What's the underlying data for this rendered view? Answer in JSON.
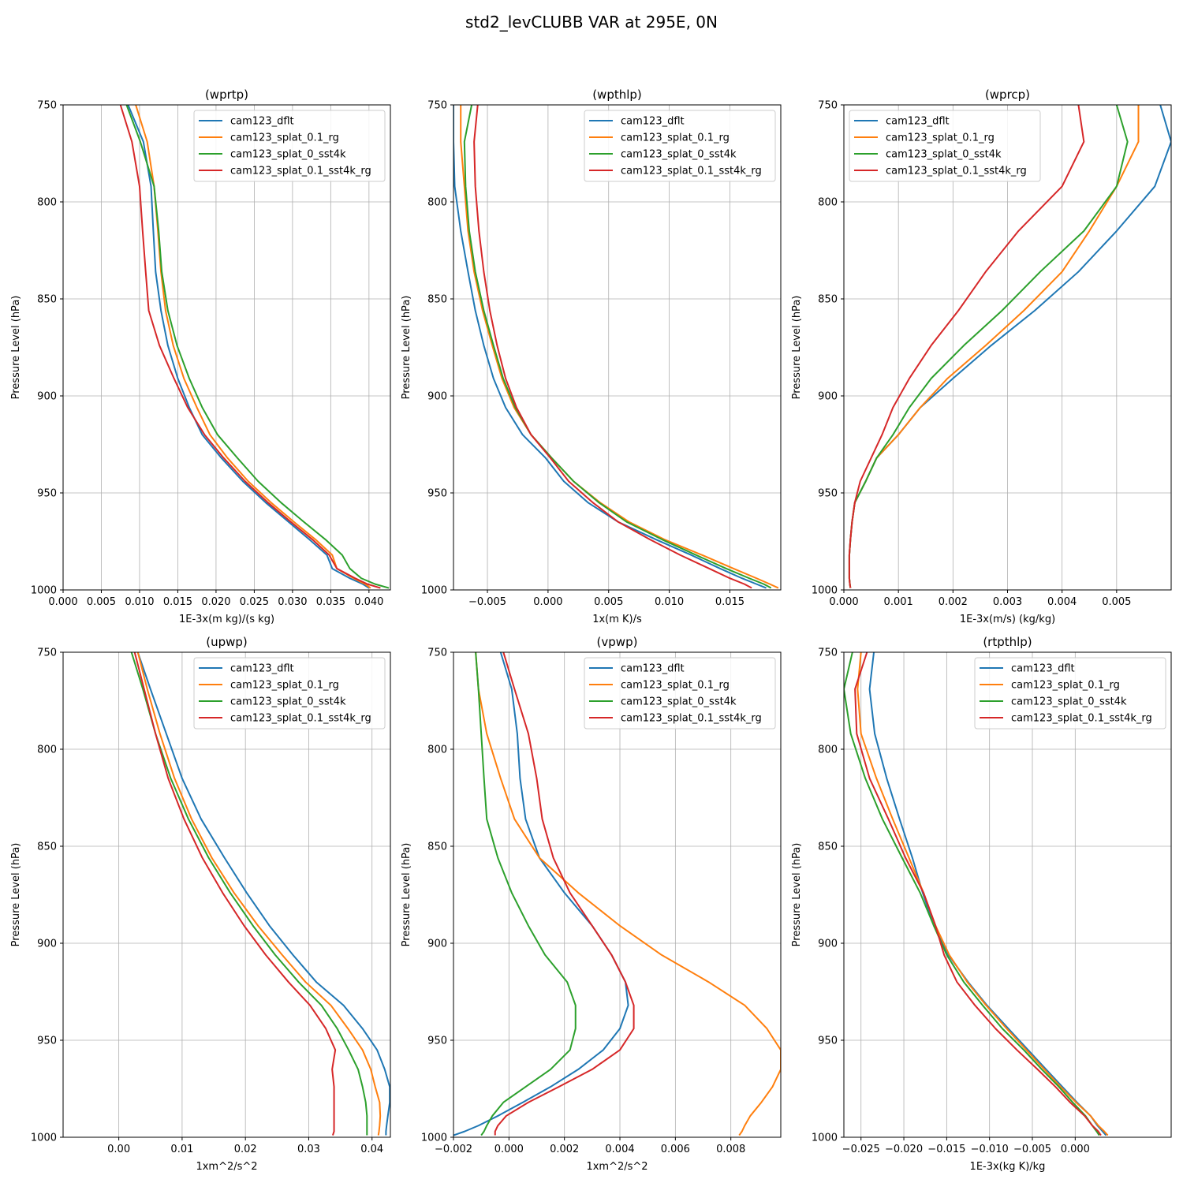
{
  "figure": {
    "title": "std2_levCLUBB VAR at 295E, 0N"
  },
  "legend_labels": [
    "cam123_dflt",
    "cam123_splat_0.1_rg",
    "cam123_splat_0_sst4k",
    "cam123_splat_0.1_sst4k_rg"
  ],
  "series_colors": [
    "#1f77b4",
    "#ff7f0e",
    "#2ca02c",
    "#d62728"
  ],
  "chart_data": [
    {
      "type": "line",
      "title": "(wprtp)",
      "xlabel": "1E-3x(m kg)/(s kg)",
      "ylabel": "Pressure Level (hPa)",
      "xlim": [
        0.0,
        0.0428
      ],
      "ylim": [
        1000,
        750
      ],
      "xticks": [
        0.0,
        0.005,
        0.01,
        0.015,
        0.02,
        0.025,
        0.03,
        0.035,
        0.04
      ],
      "xtick_labels": [
        "0.000",
        "0.005",
        "0.010",
        "0.015",
        "0.020",
        "0.025",
        "0.030",
        "0.035",
        "0.040"
      ],
      "yticks": [
        750,
        800,
        850,
        900,
        950,
        1000
      ],
      "ytick_labels": [
        "750",
        "800",
        "850",
        "900",
        "950",
        "1000"
      ],
      "legend_position": "upper right",
      "grid": true,
      "y": [
        750,
        769,
        792,
        815,
        836,
        856,
        874,
        891,
        906,
        920,
        932,
        944,
        955,
        965,
        974,
        982,
        989,
        994,
        997,
        999
      ],
      "series": [
        {
          "name": "cam123_dflt",
          "values": [
            0.0085,
            0.0105,
            0.0115,
            0.0118,
            0.0121,
            0.0128,
            0.0137,
            0.015,
            0.0165,
            0.0182,
            0.0207,
            0.0235,
            0.0265,
            0.0295,
            0.0322,
            0.0345,
            0.0352,
            0.0375,
            0.0392,
            0.04
          ]
        },
        {
          "name": "cam123_splat_0.1_rg",
          "values": [
            0.0095,
            0.011,
            0.0119,
            0.0124,
            0.0128,
            0.0134,
            0.0144,
            0.0158,
            0.0175,
            0.0192,
            0.0215,
            0.0242,
            0.0272,
            0.0302,
            0.033,
            0.0352,
            0.0358,
            0.038,
            0.0395,
            0.0402
          ]
        },
        {
          "name": "cam123_splat_0_sst4k",
          "values": [
            0.0083,
            0.0101,
            0.0119,
            0.0125,
            0.0129,
            0.0137,
            0.0149,
            0.0165,
            0.0182,
            0.0202,
            0.0228,
            0.0255,
            0.0285,
            0.0315,
            0.0343,
            0.0365,
            0.0375,
            0.039,
            0.0408,
            0.0426
          ]
        },
        {
          "name": "cam123_splat_0.1_sst4k_rg",
          "values": [
            0.0075,
            0.009,
            0.01,
            0.0104,
            0.0108,
            0.0112,
            0.0126,
            0.0145,
            0.0163,
            0.0185,
            0.021,
            0.0238,
            0.0268,
            0.0298,
            0.0326,
            0.0348,
            0.0358,
            0.0382,
            0.0398,
            0.0415
          ]
        }
      ]
    },
    {
      "type": "line",
      "title": "(wpthlp)",
      "xlabel": "1x(m K)/s",
      "ylabel": "Pressure Level (hPa)",
      "xlim": [
        -0.0078,
        0.0192
      ],
      "ylim": [
        1000,
        750
      ],
      "xticks": [
        -0.005,
        0.0,
        0.005,
        0.01,
        0.015
      ],
      "xtick_labels": [
        "−0.005",
        "0.000",
        "0.005",
        "0.010",
        "0.015"
      ],
      "yticks": [
        750,
        800,
        850,
        900,
        950,
        1000
      ],
      "ytick_labels": [
        "750",
        "800",
        "850",
        "900",
        "950",
        "1000"
      ],
      "legend_position": "upper right",
      "grid": true,
      "y": [
        750,
        769,
        792,
        815,
        836,
        856,
        874,
        891,
        906,
        920,
        932,
        944,
        955,
        965,
        974,
        982,
        989,
        994,
        997,
        999
      ],
      "series": [
        {
          "name": "cam123_dflt",
          "values": [
            -0.0078,
            -0.0078,
            -0.0077,
            -0.0072,
            -0.0066,
            -0.006,
            -0.0053,
            -0.0045,
            -0.0035,
            -0.0021,
            -0.0002,
            0.0013,
            0.0033,
            0.0058,
            0.0089,
            0.0118,
            0.0142,
            0.016,
            0.0172,
            0.018
          ]
        },
        {
          "name": "cam123_splat_0.1_rg",
          "values": [
            -0.0072,
            -0.0072,
            -0.0069,
            -0.0066,
            -0.0061,
            -0.0054,
            -0.0046,
            -0.0038,
            -0.0028,
            -0.0014,
            0.0003,
            0.0021,
            0.0043,
            0.0067,
            0.0096,
            0.0127,
            0.0153,
            0.0172,
            0.0183,
            0.019
          ]
        },
        {
          "name": "cam123_splat_0_sst4k",
          "values": [
            -0.0063,
            -0.0069,
            -0.0068,
            -0.0065,
            -0.006,
            -0.0053,
            -0.0045,
            -0.0037,
            -0.0027,
            -0.0014,
            0.0003,
            0.0021,
            0.0042,
            0.0065,
            0.0094,
            0.0122,
            0.0147,
            0.0166,
            0.0178,
            0.0184
          ]
        },
        {
          "name": "cam123_splat_0.1_sst4k_rg",
          "values": [
            -0.0058,
            -0.0061,
            -0.006,
            -0.0057,
            -0.0053,
            -0.0048,
            -0.0042,
            -0.0035,
            -0.0026,
            -0.0014,
            0.0002,
            0.0017,
            0.0037,
            0.0058,
            0.0084,
            0.0109,
            0.0133,
            0.015,
            0.0162,
            0.0168
          ]
        }
      ]
    },
    {
      "type": "line",
      "title": "(wprcp)",
      "xlabel": "1E-3x(m/s) (kg/kg)",
      "ylabel": "Pressure Level (hPa)",
      "xlim": [
        0.0,
        0.006
      ],
      "ylim": [
        1000,
        750
      ],
      "xticks": [
        0.0,
        0.001,
        0.002,
        0.003,
        0.004,
        0.005
      ],
      "xtick_labels": [
        "0.000",
        "0.001",
        "0.002",
        "0.003",
        "0.004",
        "0.005"
      ],
      "yticks": [
        750,
        800,
        850,
        900,
        950,
        1000
      ],
      "ytick_labels": [
        "750",
        "800",
        "850",
        "900",
        "950",
        "1000"
      ],
      "legend_position": "upper left",
      "grid": true,
      "y": [
        750,
        769,
        792,
        815,
        836,
        856,
        874,
        891,
        906,
        920,
        932,
        944,
        955,
        965,
        974,
        982,
        989,
        994,
        997,
        999
      ],
      "series": [
        {
          "name": "cam123_dflt",
          "values": [
            0.0058,
            0.006,
            0.0057,
            0.005,
            0.0043,
            0.0035,
            0.0027,
            0.002,
            0.0014,
            0.001,
            0.0006,
            0.0004,
            0.0002,
            0.00015,
            0.00012,
            0.0001,
            0.0001,
            0.0001,
            0.00011,
            0.00012
          ]
        },
        {
          "name": "cam123_splat_0.1_rg",
          "values": [
            0.0054,
            0.0054,
            0.005,
            0.0045,
            0.004,
            0.0033,
            0.0026,
            0.0019,
            0.0014,
            0.001,
            0.0006,
            0.0004,
            0.0002,
            0.00015,
            0.00012,
            0.0001,
            0.0001,
            0.0001,
            0.00011,
            0.00012
          ]
        },
        {
          "name": "cam123_splat_0_sst4k",
          "values": [
            0.005,
            0.0052,
            0.005,
            0.0044,
            0.0036,
            0.0029,
            0.0022,
            0.0016,
            0.0012,
            0.0009,
            0.0006,
            0.0004,
            0.0002,
            0.00015,
            0.00012,
            0.0001,
            0.0001,
            0.0001,
            0.00011,
            0.00012
          ]
        },
        {
          "name": "cam123_splat_0.1_sst4k_rg",
          "values": [
            0.0043,
            0.0044,
            0.004,
            0.0032,
            0.0026,
            0.0021,
            0.0016,
            0.0012,
            0.0009,
            0.0007,
            0.0005,
            0.0003,
            0.0002,
            0.00015,
            0.00012,
            0.0001,
            0.0001,
            0.0001,
            0.00011,
            0.00012
          ]
        }
      ]
    },
    {
      "type": "line",
      "title": "(upwp)",
      "xlabel": "1xm^2/s^2",
      "ylabel": "Pressure Level (hPa)",
      "xlim": [
        -0.0088,
        0.0429
      ],
      "ylim": [
        1000,
        750
      ],
      "xticks": [
        0.0,
        0.01,
        0.02,
        0.03,
        0.04
      ],
      "xtick_labels": [
        "0.00",
        "0.01",
        "0.02",
        "0.03",
        "0.04"
      ],
      "yticks": [
        750,
        800,
        850,
        900,
        950,
        1000
      ],
      "ytick_labels": [
        "750",
        "800",
        "850",
        "900",
        "950",
        "1000"
      ],
      "legend_position": "upper right",
      "grid": true,
      "y": [
        750,
        769,
        792,
        815,
        836,
        856,
        874,
        891,
        906,
        920,
        932,
        944,
        955,
        965,
        974,
        982,
        989,
        994,
        997,
        999
      ],
      "series": [
        {
          "name": "cam123_dflt",
          "values": [
            0.003,
            0.005,
            0.0075,
            0.01,
            0.013,
            0.0167,
            0.0202,
            0.0238,
            0.0275,
            0.0312,
            0.0355,
            0.0385,
            0.0408,
            0.042,
            0.0428,
            0.0428,
            0.0425,
            0.0423,
            0.0422,
            0.0422
          ]
        },
        {
          "name": "cam123_splat_0.1_rg",
          "values": [
            0.003,
            0.0045,
            0.0065,
            0.0088,
            0.0115,
            0.0147,
            0.0182,
            0.022,
            0.0258,
            0.0295,
            0.0335,
            0.0362,
            0.0385,
            0.0398,
            0.0405,
            0.0412,
            0.0413,
            0.0412,
            0.0411,
            0.041
          ]
        },
        {
          "name": "cam123_splat_0_sst4k",
          "values": [
            0.002,
            0.0038,
            0.0058,
            0.0082,
            0.011,
            0.0142,
            0.0176,
            0.0212,
            0.0247,
            0.0284,
            0.032,
            0.0345,
            0.0363,
            0.0378,
            0.0385,
            0.039,
            0.0392,
            0.0392,
            0.0392,
            0.0392
          ]
        },
        {
          "name": "cam123_splat_0.1_sst4k_rg",
          "values": [
            0.0025,
            0.004,
            0.0058,
            0.0078,
            0.0103,
            0.0132,
            0.0164,
            0.0198,
            0.0232,
            0.0268,
            0.0302,
            0.0327,
            0.0342,
            0.0337,
            0.034,
            0.034,
            0.034,
            0.034,
            0.034,
            0.0338
          ]
        }
      ]
    },
    {
      "type": "line",
      "title": "(vpwp)",
      "xlabel": "1xm^2/s^2",
      "ylabel": "Pressure Level (hPa)",
      "xlim": [
        -0.002,
        0.0098
      ],
      "ylim": [
        1000,
        750
      ],
      "xticks": [
        -0.002,
        0.0,
        0.002,
        0.004,
        0.006,
        0.008
      ],
      "xtick_labels": [
        "−0.002",
        "0.000",
        "0.002",
        "0.004",
        "0.006",
        "0.008"
      ],
      "yticks": [
        750,
        800,
        850,
        900,
        950,
        1000
      ],
      "ytick_labels": [
        "750",
        "800",
        "850",
        "900",
        "950",
        "1000"
      ],
      "legend_position": "upper right",
      "grid": true,
      "y": [
        750,
        769,
        792,
        815,
        836,
        856,
        874,
        891,
        906,
        920,
        932,
        944,
        955,
        965,
        974,
        982,
        989,
        994,
        997,
        999
      ],
      "series": [
        {
          "name": "cam123_dflt",
          "values": [
            -0.0003,
            0.0001,
            0.0003,
            0.0004,
            0.0006,
            0.0011,
            0.002,
            0.003,
            0.0037,
            0.0042,
            0.0043,
            0.004,
            0.0034,
            0.0025,
            0.0015,
            0.0005,
            -0.0004,
            -0.0011,
            -0.0016,
            -0.002
          ]
        },
        {
          "name": "cam123_splat_0.1_rg",
          "values": [
            -0.0012,
            -0.0011,
            -0.0008,
            -0.0003,
            0.0002,
            0.0011,
            0.0025,
            0.004,
            0.0055,
            0.0072,
            0.0085,
            0.0093,
            0.0098,
            0.0098,
            0.0095,
            0.0091,
            0.0087,
            0.0085,
            0.0084,
            0.0083
          ]
        },
        {
          "name": "cam123_splat_0_sst4k",
          "values": [
            -0.0012,
            -0.0011,
            -0.001,
            -0.0009,
            -0.0008,
            -0.0004,
            0.0001,
            0.0007,
            0.0013,
            0.0021,
            0.0024,
            0.0024,
            0.0022,
            0.0015,
            0.0006,
            -0.0002,
            -0.0006,
            -0.0008,
            -0.0009,
            -0.001
          ]
        },
        {
          "name": "cam123_splat_0.1_sst4k_rg",
          "values": [
            -0.0002,
            0.0002,
            0.0007,
            0.001,
            0.0012,
            0.0016,
            0.0022,
            0.003,
            0.0037,
            0.0042,
            0.0045,
            0.0045,
            0.004,
            0.003,
            0.0018,
            0.0007,
            -0.0001,
            -0.0004,
            -0.0005,
            -0.0005
          ]
        }
      ]
    },
    {
      "type": "line",
      "title": "(rtpthlp)",
      "xlabel": "1E-3x(kg K)/kg",
      "ylabel": "Pressure Level (hPa)",
      "xlim": [
        -0.027,
        0.0112
      ],
      "ylim": [
        1000,
        750
      ],
      "xticks": [
        -0.025,
        -0.02,
        -0.015,
        -0.01,
        -0.005,
        0.0
      ],
      "xtick_labels": [
        "−0.025",
        "−0.020",
        "−0.015",
        "−0.010",
        "−0.005",
        "0.000"
      ],
      "yticks": [
        750,
        800,
        850,
        900,
        950,
        1000
      ],
      "ytick_labels": [
        "750",
        "800",
        "850",
        "900",
        "950",
        "1000"
      ],
      "legend_position": "upper right",
      "grid": true,
      "y": [
        750,
        769,
        792,
        815,
        836,
        856,
        874,
        891,
        906,
        920,
        932,
        944,
        955,
        965,
        974,
        982,
        989,
        994,
        997,
        999
      ],
      "series": [
        {
          "name": "cam123_dflt",
          "values": [
            -0.0235,
            -0.024,
            -0.0234,
            -0.022,
            -0.0205,
            -0.019,
            -0.0178,
            -0.0165,
            -0.0148,
            -0.0125,
            -0.0103,
            -0.0078,
            -0.0055,
            -0.0034,
            -0.0015,
            0.0002,
            0.0018,
            0.0026,
            0.0032,
            0.0036
          ]
        },
        {
          "name": "cam123_splat_0.1_rg",
          "values": [
            -0.025,
            -0.0254,
            -0.025,
            -0.0232,
            -0.0213,
            -0.0194,
            -0.0177,
            -0.0163,
            -0.0147,
            -0.0126,
            -0.0104,
            -0.008,
            -0.0057,
            -0.0036,
            -0.0017,
            0.0001,
            0.0018,
            0.0027,
            0.0034,
            0.0038
          ]
        },
        {
          "name": "cam123_splat_0_sst4k",
          "values": [
            -0.026,
            -0.027,
            -0.0262,
            -0.0245,
            -0.0225,
            -0.0202,
            -0.0181,
            -0.0165,
            -0.015,
            -0.013,
            -0.0108,
            -0.0085,
            -0.006,
            -0.0039,
            -0.0019,
            -0.0003,
            0.0012,
            0.002,
            0.0025,
            0.0028
          ]
        },
        {
          "name": "cam123_splat_0.1_sst4k_rg",
          "values": [
            -0.0243,
            -0.0257,
            -0.0255,
            -0.024,
            -0.0218,
            -0.0198,
            -0.0177,
            -0.0163,
            -0.0153,
            -0.0138,
            -0.0117,
            -0.0093,
            -0.0068,
            -0.0044,
            -0.0023,
            -0.0006,
            0.0011,
            0.002,
            0.0027,
            0.003
          ]
        }
      ]
    }
  ]
}
